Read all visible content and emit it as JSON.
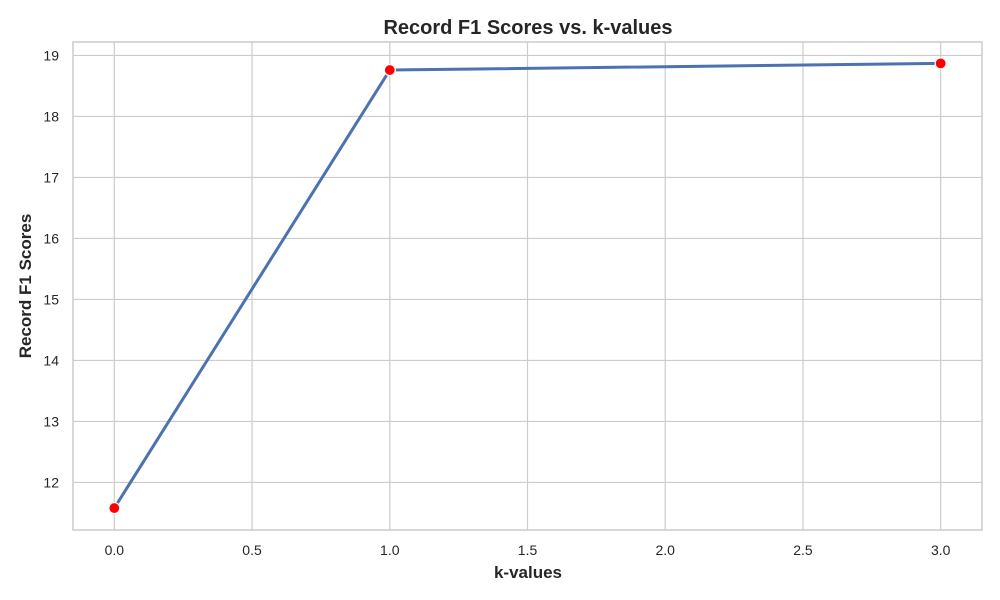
{
  "chart_data": {
    "type": "line",
    "title": "Record F1 Scores vs. k-values",
    "xlabel": "k-values",
    "ylabel": "Record F1 Scores",
    "x": [
      0,
      1,
      3
    ],
    "series": [
      {
        "values": [
          11.58,
          18.76,
          18.87
        ],
        "line_color": "#4c72b0",
        "marker_color": "#ff0000"
      }
    ],
    "xlim": [
      -0.15,
      3.15
    ],
    "ylim": [
      11.22,
      19.22
    ],
    "xticks": [
      0.0,
      0.5,
      1.0,
      1.5,
      2.0,
      2.5,
      3.0
    ],
    "xtick_labels": [
      "0.0",
      "0.5",
      "1.0",
      "1.5",
      "2.0",
      "2.5",
      "3.0"
    ],
    "yticks": [
      12,
      13,
      14,
      15,
      16,
      17,
      18,
      19
    ],
    "ytick_labels": [
      "12",
      "13",
      "14",
      "15",
      "16",
      "17",
      "18",
      "19"
    ],
    "grid": true,
    "background_color": "#ffffff",
    "grid_color": "#cccccc"
  }
}
